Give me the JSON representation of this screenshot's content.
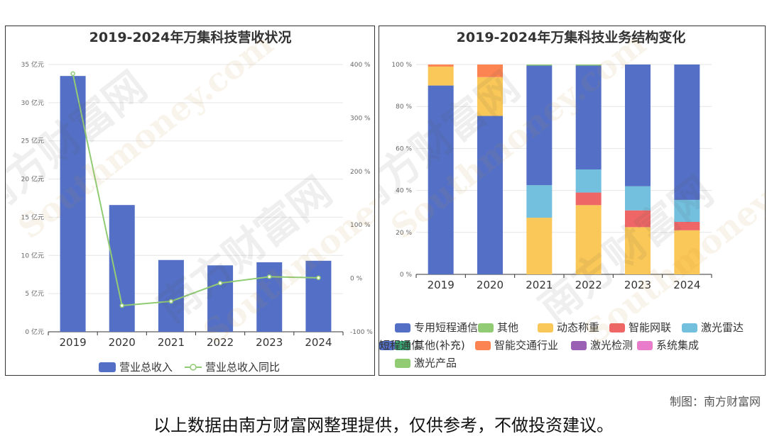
{
  "credit": "制图：南方财富网",
  "disclaimer": "以上数据由南方财富网整理提供，仅供参考，不做投资建议。",
  "watermark": {
    "cn": "南方财富网",
    "en": "Southmoney.com"
  },
  "colors": {
    "bar": "#5470c6",
    "line": "#91cc75",
    "grid": "#e6e6e6",
    "axis": "#333333",
    "title": "#333333",
    "segments": [
      "#5470c6",
      "#91cc75",
      "#fac858",
      "#ee6666",
      "#73c0de",
      "#3ba272",
      "#fc8452",
      "#9a60b4",
      "#ea7ccc",
      "#5470c6",
      "#91cc75"
    ]
  },
  "chart_data": [
    {
      "type": "bar",
      "title": "2019-2024年万集科技营收状况",
      "categories": [
        "2019",
        "2020",
        "2021",
        "2022",
        "2023",
        "2024"
      ],
      "series": [
        {
          "name": "营业总收入",
          "type": "bar",
          "axis": "left",
          "values": [
            33.5,
            16.6,
            9.4,
            8.7,
            9.1,
            9.3
          ]
        },
        {
          "name": "营业总收入同比",
          "type": "line",
          "axis": "right",
          "values": [
            383,
            -51,
            -43,
            -9,
            3,
            1
          ]
        }
      ],
      "yleft": {
        "min": 0,
        "max": 35,
        "ticks": [
          "0 亿元",
          "5 亿元",
          "10 亿元",
          "15 亿元",
          "20 亿元",
          "25 亿元",
          "30 亿元",
          "35 亿元"
        ]
      },
      "yright": {
        "min": -100,
        "max": 400,
        "ticks": [
          "-100 %",
          "0 %",
          "100 %",
          "200 %",
          "300 %",
          "400 %"
        ]
      },
      "grid": true,
      "legend": "bottom"
    },
    {
      "type": "bar",
      "stacked": true,
      "title": "2019-2024年万集科技业务结构变化",
      "categories": [
        "2019",
        "2020",
        "2021",
        "2022",
        "2023",
        "2024"
      ],
      "series": [
        {
          "name": "专用短程通信",
          "values": [
            90,
            75.5,
            0,
            0,
            0,
            0
          ]
        },
        {
          "name": "其他",
          "values": [
            0,
            0,
            0,
            0,
            0,
            0
          ]
        },
        {
          "name": "动态称重",
          "values": [
            9,
            18.5,
            27,
            33,
            22.5,
            21
          ]
        },
        {
          "name": "智能网联",
          "values": [
            0,
            0,
            0,
            6,
            8,
            4
          ]
        },
        {
          "name": "激光雷达",
          "values": [
            0,
            0,
            15.5,
            11,
            11.5,
            10.5
          ]
        },
        {
          "name": "其他(补充)",
          "values": [
            0,
            0,
            0,
            0,
            0,
            0
          ]
        },
        {
          "name": "智能交通行业",
          "values": [
            1,
            6,
            0,
            0,
            0,
            0
          ]
        },
        {
          "name": "激光检测",
          "values": [
            0,
            0,
            0,
            0,
            0,
            0
          ]
        },
        {
          "name": "系统集成",
          "values": [
            0,
            0,
            0,
            0,
            0,
            0
          ]
        },
        {
          "name": "短程通信",
          "values": [
            0,
            0,
            57,
            49.5,
            58,
            64.5
          ]
        },
        {
          "name": "激光产品",
          "values": [
            0,
            0,
            0.5,
            0.5,
            0,
            0
          ]
        }
      ],
      "ylim": [
        0,
        100
      ],
      "yticks": [
        "0 %",
        "20 %",
        "40 %",
        "60 %",
        "80 %",
        "100 %"
      ],
      "grid": true,
      "legend": "bottom"
    }
  ]
}
